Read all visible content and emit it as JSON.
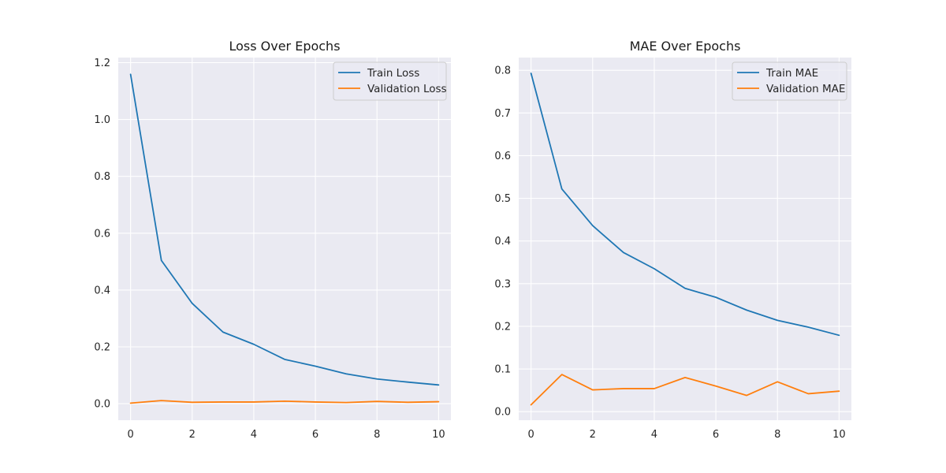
{
  "chart_data": [
    {
      "type": "line",
      "title": "Loss Over Epochs",
      "xlabel": "",
      "ylabel": "",
      "x": [
        0,
        1,
        2,
        3,
        4,
        5,
        6,
        7,
        8,
        9,
        10
      ],
      "xlim": [
        -0.4,
        10.4
      ],
      "ylim": [
        -0.058,
        1.218
      ],
      "x_ticks": [
        0,
        2,
        4,
        6,
        8,
        10
      ],
      "y_ticks": [
        0.0,
        0.2,
        0.4,
        0.6,
        0.8,
        1.0,
        1.2
      ],
      "y_tick_labels": [
        "0.0",
        "0.2",
        "0.4",
        "0.6",
        "0.8",
        "1.0",
        "1.2"
      ],
      "grid": true,
      "legend_position": "top-right",
      "series": [
        {
          "name": "Train Loss",
          "color": "#1f77b4",
          "values": [
            1.159,
            0.504,
            0.353,
            0.252,
            0.209,
            0.156,
            0.132,
            0.105,
            0.087,
            0.076,
            0.066
          ]
        },
        {
          "name": "Validation Loss",
          "color": "#ff7f0e",
          "values": [
            0.002,
            0.011,
            0.005,
            0.006,
            0.006,
            0.009,
            0.006,
            0.004,
            0.008,
            0.005,
            0.007
          ]
        }
      ]
    },
    {
      "type": "line",
      "title": "MAE Over Epochs",
      "xlabel": "",
      "ylabel": "",
      "x": [
        0,
        1,
        2,
        3,
        4,
        5,
        6,
        7,
        8,
        9,
        10
      ],
      "xlim": [
        -0.4,
        10.4
      ],
      "ylim": [
        -0.02,
        0.83
      ],
      "x_ticks": [
        0,
        2,
        4,
        6,
        8,
        10
      ],
      "y_ticks": [
        0.0,
        0.1,
        0.2,
        0.3,
        0.4,
        0.5,
        0.6,
        0.7,
        0.8
      ],
      "y_tick_labels": [
        "0.0",
        "0.1",
        "0.2",
        "0.3",
        "0.4",
        "0.5",
        "0.6",
        "0.7",
        "0.8"
      ],
      "grid": true,
      "legend_position": "top-right",
      "series": [
        {
          "name": "Train MAE",
          "color": "#1f77b4",
          "values": [
            0.793,
            0.522,
            0.436,
            0.373,
            0.335,
            0.289,
            0.268,
            0.238,
            0.214,
            0.198,
            0.179
          ]
        },
        {
          "name": "Validation MAE",
          "color": "#ff7f0e",
          "values": [
            0.016,
            0.087,
            0.051,
            0.054,
            0.054,
            0.08,
            0.06,
            0.038,
            0.07,
            0.042,
            0.048
          ]
        }
      ]
    }
  ]
}
